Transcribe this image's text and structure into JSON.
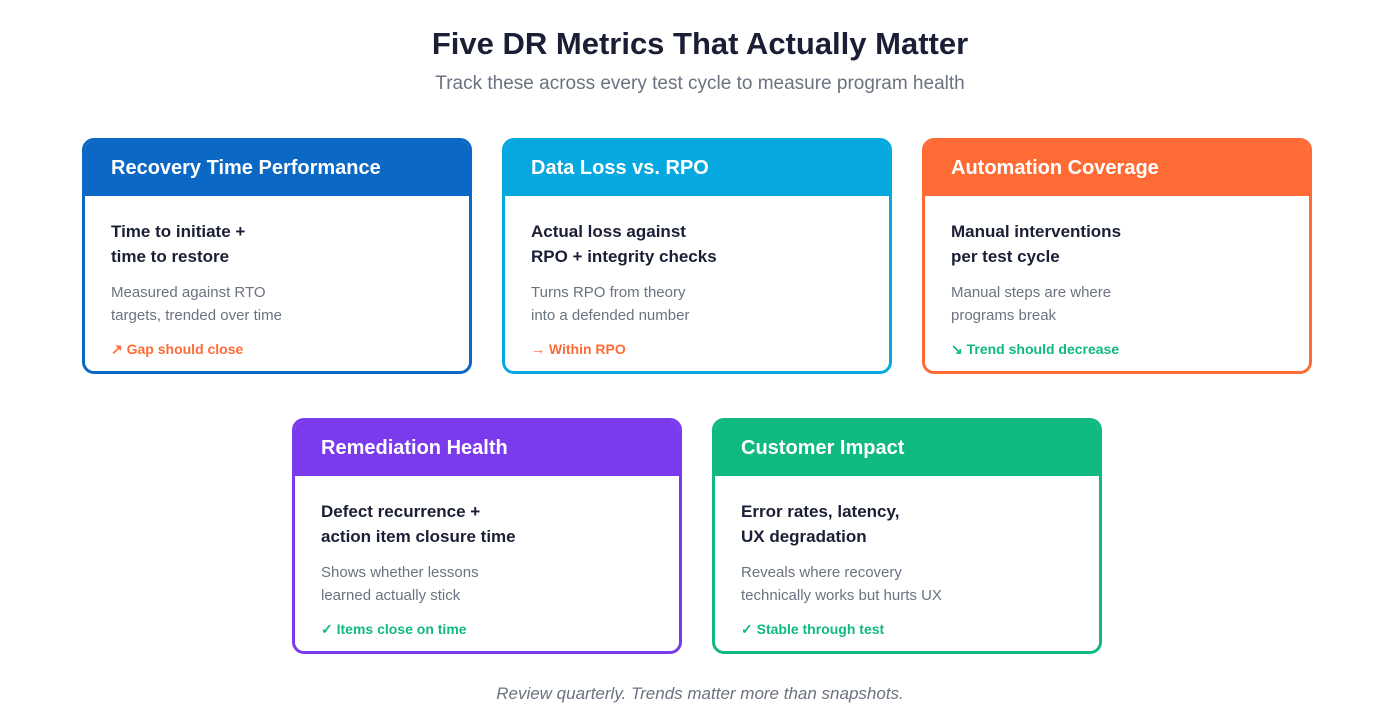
{
  "title": "Five DR Metrics That Actually Matter",
  "subtitle": "Track these across every test cycle to measure program health",
  "colors": {
    "blue": "#0b68c4",
    "sky": "#06a8e0",
    "orange": "#ff6b35",
    "purple": "#7c3aed",
    "green": "#10b981",
    "trend_orange": "#ff6b35",
    "trend_green": "#10b981"
  },
  "cards": [
    {
      "title": "Recovery Time Performance",
      "main": "Time to initiate +\ntime to restore",
      "desc": "Measured against RTO\ntargets, trended over time",
      "trend": "↗ Gap should close",
      "color": "#0b68c4",
      "trend_color": "#ff6b35"
    },
    {
      "title": "Data Loss vs. RPO",
      "main": "Actual loss against\nRPO + integrity checks",
      "desc": "Turns RPO from theory\ninto a defended number",
      "trend": "→ Within RPO",
      "color": "#06a8e0",
      "trend_color": "#ff6b35"
    },
    {
      "title": "Automation Coverage",
      "main": "Manual interventions\nper test cycle",
      "desc": "Manual steps are where\nprograms break",
      "trend": "↘ Trend should decrease",
      "color": "#ff6b35",
      "trend_color": "#10b981"
    },
    {
      "title": "Remediation Health",
      "main": "Defect recurrence +\naction item closure time",
      "desc": "Shows whether lessons\nlearned actually stick",
      "trend": "✓ Items close on time",
      "color": "#7c3aed",
      "trend_color": "#10b981"
    },
    {
      "title": "Customer Impact",
      "main": "Error rates, latency,\nUX degradation",
      "desc": "Reveals where recovery\ntechnically works but hurts UX",
      "trend": "✓ Stable through test",
      "color": "#10b981",
      "trend_color": "#10b981"
    }
  ],
  "footer": "Review quarterly. Trends matter more than snapshots."
}
